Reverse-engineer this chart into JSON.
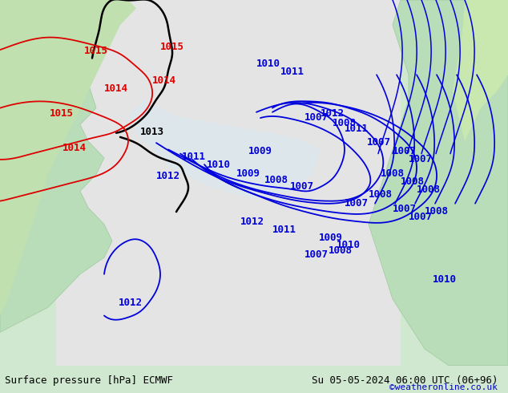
{
  "title_left": "Surface pressure [hPa] ECMWF",
  "title_right": "Su 05-05-2024 06:00 UTC (06+96)",
  "credit": "©weatheronline.co.uk",
  "bg_color": "#d8efd8",
  "land_color": "#c8e8c8",
  "sea_color": "#e8e8e8",
  "contour_levels_blue": [
    1007,
    1008,
    1009,
    1010,
    1011,
    1012
  ],
  "contour_levels_red": [
    1014,
    1015
  ],
  "contour_levels_black": [
    1013
  ],
  "font_size_labels": 9,
  "font_size_title": 9,
  "font_size_credit": 8
}
